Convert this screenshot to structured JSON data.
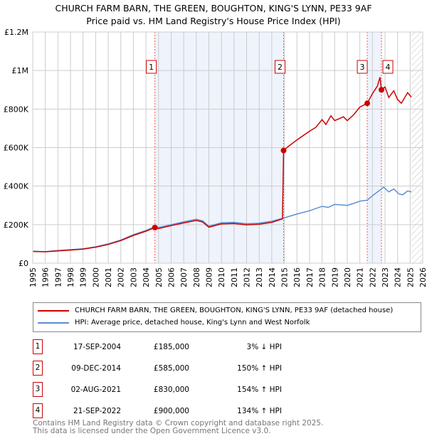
{
  "title_line1": "CHURCH FARM BARN, THE GREEN, BOUGHTON, KING'S LYNN, PE33 9AF",
  "title_line2": "Price paid vs. HM Land Registry's House Price Index (HPI)",
  "chart_data": {
    "type": "line",
    "xlim": [
      1995,
      2026
    ],
    "ylim": [
      0,
      1200000
    ],
    "x_ticks": [
      1995,
      1996,
      1997,
      1998,
      1999,
      2000,
      2001,
      2002,
      2003,
      2004,
      2005,
      2006,
      2007,
      2008,
      2009,
      2010,
      2011,
      2012,
      2013,
      2014,
      2015,
      2016,
      2017,
      2018,
      2019,
      2020,
      2021,
      2022,
      2023,
      2024,
      2025,
      2026
    ],
    "y_ticks": [
      {
        "v": 0,
        "label": "£0"
      },
      {
        "v": 200000,
        "label": "£200K"
      },
      {
        "v": 400000,
        "label": "£400K"
      },
      {
        "v": 600000,
        "label": "£600K"
      },
      {
        "v": 800000,
        "label": "£800K"
      },
      {
        "v": 1000000,
        "label": "£1M"
      },
      {
        "v": 1200000,
        "label": "£1.2M"
      }
    ],
    "grid": true,
    "forecast_hatch_from": 2025.1,
    "colors": {
      "property": "#cc0000",
      "hpi": "#5b8fd4",
      "shade": "#eef3fc",
      "marker_line": "#ff5555"
    },
    "series": [
      {
        "name": "CHURCH FARM BARN, THE GREEN, BOUGHTON, KING'S LYNN, PE33 9AF (detached house)",
        "key": "property",
        "points": [
          [
            1995,
            61000
          ],
          [
            1996,
            59000
          ],
          [
            1997,
            64000
          ],
          [
            1998,
            68000
          ],
          [
            1999,
            73000
          ],
          [
            2000,
            83000
          ],
          [
            2001,
            97000
          ],
          [
            2002,
            117000
          ],
          [
            2003,
            144000
          ],
          [
            2004,
            166000
          ],
          [
            2004.71,
            185000
          ],
          [
            2005,
            180000
          ],
          [
            2006,
            195000
          ],
          [
            2007,
            209000
          ],
          [
            2008,
            222000
          ],
          [
            2008.5,
            214000
          ],
          [
            2009,
            187000
          ],
          [
            2010,
            204000
          ],
          [
            2011,
            206000
          ],
          [
            2012,
            199000
          ],
          [
            2013,
            202000
          ],
          [
            2014,
            212000
          ],
          [
            2014.85,
            230000
          ],
          [
            2014.94,
            585000
          ],
          [
            2015.3,
            605000
          ],
          [
            2016,
            640000
          ],
          [
            2017,
            685000
          ],
          [
            2017.5,
            705000
          ],
          [
            2018,
            745000
          ],
          [
            2018.3,
            720000
          ],
          [
            2018.7,
            765000
          ],
          [
            2019,
            740000
          ],
          [
            2019.7,
            760000
          ],
          [
            2020,
            740000
          ],
          [
            2020.5,
            770000
          ],
          [
            2021,
            810000
          ],
          [
            2021.59,
            830000
          ],
          [
            2022,
            880000
          ],
          [
            2022.4,
            920000
          ],
          [
            2022.6,
            965000
          ],
          [
            2022.72,
            900000
          ],
          [
            2023,
            915000
          ],
          [
            2023.3,
            860000
          ],
          [
            2023.7,
            895000
          ],
          [
            2024,
            850000
          ],
          [
            2024.3,
            830000
          ],
          [
            2024.8,
            885000
          ],
          [
            2025.1,
            862000
          ]
        ]
      },
      {
        "name": "HPI: Average price, detached house, King's Lynn and West Norfolk",
        "key": "hpi",
        "points": [
          [
            1995,
            62000
          ],
          [
            1996,
            60000
          ],
          [
            1997,
            66000
          ],
          [
            1998,
            70000
          ],
          [
            1999,
            75000
          ],
          [
            2000,
            85000
          ],
          [
            2001,
            100000
          ],
          [
            2002,
            120000
          ],
          [
            2003,
            148000
          ],
          [
            2004,
            170000
          ],
          [
            2004.71,
            190000
          ],
          [
            2005,
            185000
          ],
          [
            2006,
            200000
          ],
          [
            2007,
            215000
          ],
          [
            2008,
            228000
          ],
          [
            2008.5,
            220000
          ],
          [
            2009,
            192000
          ],
          [
            2010,
            210000
          ],
          [
            2011,
            212000
          ],
          [
            2012,
            205000
          ],
          [
            2013,
            208000
          ],
          [
            2014,
            218000
          ],
          [
            2014.94,
            234000
          ],
          [
            2016,
            255000
          ],
          [
            2017,
            272000
          ],
          [
            2018,
            295000
          ],
          [
            2018.5,
            290000
          ],
          [
            2019,
            305000
          ],
          [
            2020,
            300000
          ],
          [
            2020.5,
            310000
          ],
          [
            2021,
            322000
          ],
          [
            2021.59,
            327000
          ],
          [
            2022,
            350000
          ],
          [
            2022.72,
            385000
          ],
          [
            2022.9,
            395000
          ],
          [
            2023.3,
            370000
          ],
          [
            2023.7,
            385000
          ],
          [
            2024.1,
            360000
          ],
          [
            2024.4,
            355000
          ],
          [
            2024.8,
            375000
          ],
          [
            2025.1,
            370000
          ]
        ]
      }
    ],
    "sales": [
      {
        "label": "1",
        "x": 2004.71,
        "price": 185000,
        "date": "17-SEP-2004",
        "price_text": "£185,000",
        "hpi_text": "3% ↓ HPI"
      },
      {
        "label": "2",
        "x": 2014.94,
        "price": 585000,
        "date": "09-DEC-2014",
        "price_text": "£585,000",
        "hpi_text": "150% ↑ HPI"
      },
      {
        "label": "3",
        "x": 2021.59,
        "price": 830000,
        "date": "02-AUG-2021",
        "price_text": "£830,000",
        "hpi_text": "154% ↑ HPI"
      },
      {
        "label": "4",
        "x": 2022.72,
        "price": 900000,
        "date": "21-SEP-2022",
        "price_text": "£900,000",
        "hpi_text": "134% ↑ HPI"
      }
    ],
    "legend": {
      "placement": "below",
      "property": "CHURCH FARM BARN, THE GREEN, BOUGHTON, KING'S LYNN, PE33 9AF (detached house)",
      "hpi": "HPI: Average price, detached house, King's Lynn and West Norfolk"
    }
  },
  "footer_line1": "Contains HM Land Registry data © Crown copyright and database right 2025.",
  "footer_line2": "This data is licensed under the Open Government Licence v3.0."
}
